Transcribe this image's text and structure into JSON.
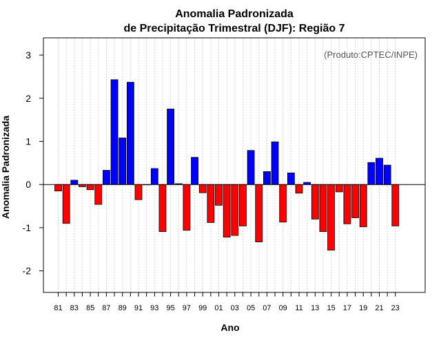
{
  "chart_data": {
    "type": "bar",
    "title_line1": "Anomalia Padronizada",
    "title_line2": "de Precipitação Trimestral (DJF): Região 7",
    "xlabel": "Ano",
    "ylabel": "Anomalia Padronizada",
    "credit": "(Produto:CPTEC/INPE)",
    "ylim": [
      -2.5,
      3.4
    ],
    "yticks": [
      -2,
      -1,
      0,
      1,
      2,
      3
    ],
    "xtick_labels": [
      "81",
      "83",
      "85",
      "87",
      "89",
      "91",
      "93",
      "95",
      "97",
      "99",
      "01",
      "03",
      "05",
      "07",
      "09",
      "11",
      "13",
      "15",
      "17",
      "19",
      "21",
      "23"
    ],
    "categories": [
      "81",
      "82",
      "83",
      "84",
      "85",
      "86",
      "87",
      "88",
      "89",
      "90",
      "91",
      "92",
      "93",
      "94",
      "95",
      "96",
      "97",
      "98",
      "99",
      "00",
      "01",
      "02",
      "03",
      "04",
      "05",
      "06",
      "07",
      "08",
      "09",
      "10",
      "11",
      "12",
      "13",
      "14",
      "15",
      "16",
      "17",
      "18",
      "19",
      "20",
      "21",
      "22",
      "23"
    ],
    "values": [
      -0.15,
      -0.9,
      0.1,
      -0.05,
      -0.12,
      -0.46,
      0.33,
      2.43,
      1.08,
      2.37,
      -0.35,
      0.0,
      0.37,
      -1.09,
      1.75,
      0.02,
      -1.06,
      0.63,
      -0.19,
      -0.88,
      -0.48,
      -1.22,
      -1.18,
      -0.96,
      0.79,
      -1.33,
      0.3,
      0.99,
      -0.87,
      0.27,
      -0.2,
      0.05,
      -0.8,
      -1.09,
      -1.52,
      -0.17,
      -0.91,
      -0.77,
      -0.98,
      0.51,
      0.61,
      0.45,
      -0.96
    ],
    "colors": {
      "positive": "#0000ff",
      "negative": "#ff0000",
      "zero_line": "#000000",
      "grid": "#d3d3d3"
    }
  }
}
